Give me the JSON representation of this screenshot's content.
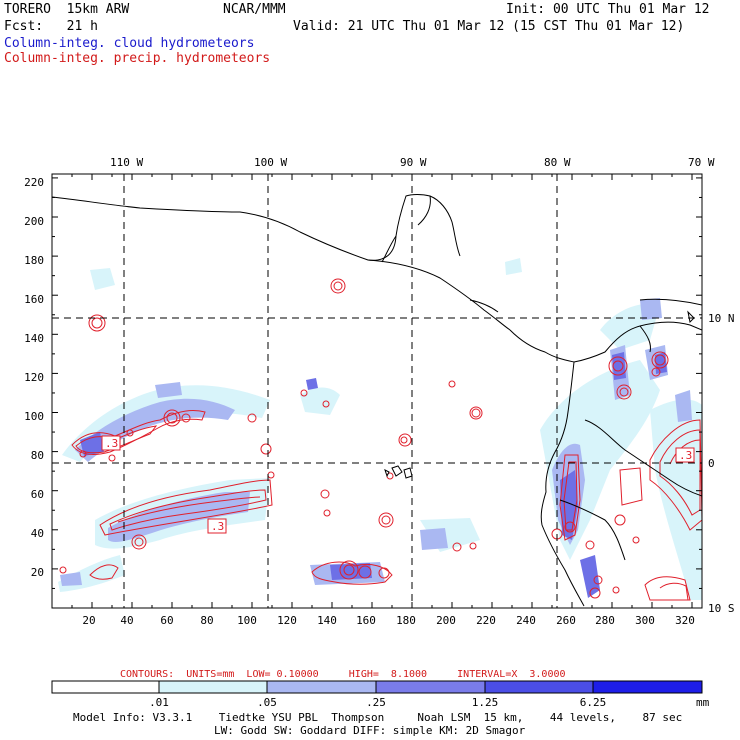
{
  "header": {
    "model": "TORERO  15km ARW",
    "org": "NCAR/MMM",
    "init": "Init: 00 UTC Thu 01 Mar 12",
    "fcst": "Fcst:   21 h",
    "valid": "Valid: 21 UTC Thu 01 Mar 12 (15 CST Thu 01 Mar 12)",
    "legend_cloud": "Column-integ. cloud hydrometeors",
    "legend_precip": "Column-integ. precip. hydrometeors"
  },
  "colors": {
    "cloud": "#1a1acc",
    "precip": "#d21a1a",
    "contour": "#e0202c",
    "scale": [
      "#ffffff",
      "#d8f4fa",
      "#aab8f2",
      "#7a7cea",
      "#4b4ee6",
      "#1e1ee8"
    ]
  },
  "lon_labels": [
    "110 W",
    "100 W",
    "90 W",
    "80 W",
    "70 W"
  ],
  "lat_labels": [
    "10 N",
    "0",
    "10 S"
  ],
  "x_ticks": [
    "20",
    "40",
    "60",
    "80",
    "100",
    "120",
    "140",
    "160",
    "180",
    "200",
    "220",
    "240",
    "260",
    "280",
    "300",
    "320"
  ],
  "y_ticks": [
    "20",
    "40",
    "60",
    "80",
    "100",
    "120",
    "140",
    "160",
    "180",
    "200",
    "220"
  ],
  "contour_labels": [
    ".3",
    ".3",
    ".3"
  ],
  "footer": {
    "contours": "CONTOURS:  UNITS=mm  LOW= 0.10000     HIGH=  8.1000     INTERVAL=X  3.0000",
    "scale_labels": [
      ".01",
      ".05",
      ".25",
      "1.25",
      "6.25"
    ],
    "units": "mm",
    "info1": "Model Info: V3.3.1    Tiedtke YSU PBL  Thompson     Noah LSM  15 km,    44 levels,    87 sec",
    "info2": "LW: Godd SW: Goddard DIFF: simple KM: 2D Smagor"
  }
}
